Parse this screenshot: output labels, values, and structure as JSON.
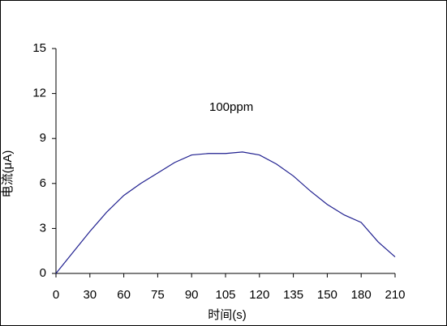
{
  "chart_data": {
    "type": "line",
    "x_label": "时间(s)",
    "y_label": "电流(μA)",
    "annotation": "100ppm",
    "categories": [
      "0",
      null,
      "30",
      null,
      "60",
      null,
      "75",
      null,
      "90",
      null,
      "105",
      null,
      "120",
      null,
      "135",
      null,
      "150",
      null,
      "180",
      null,
      "210"
    ],
    "series": [
      {
        "name": "100ppm",
        "color": "#1f1f8f",
        "values": [
          0,
          1.4,
          2.8,
          4.1,
          5.2,
          6.0,
          6.7,
          7.4,
          7.9,
          8.0,
          8.0,
          8.1,
          7.9,
          7.3,
          6.5,
          5.5,
          4.6,
          3.9,
          3.4,
          2.1,
          1.1
        ]
      }
    ],
    "ylim": [
      0,
      15
    ],
    "yticks": [
      0,
      3,
      6,
      9,
      12,
      15
    ],
    "grid": false
  }
}
